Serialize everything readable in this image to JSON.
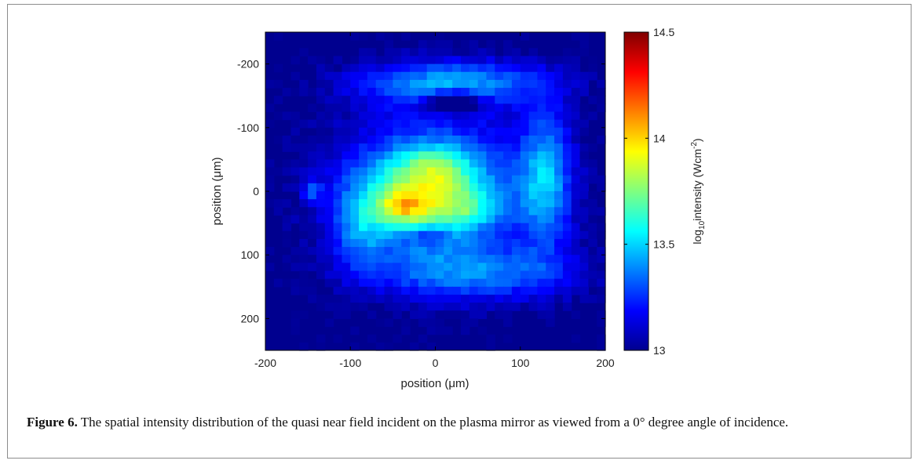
{
  "chart_data": {
    "type": "heatmap",
    "title": "",
    "xlabel": "position (μm)",
    "ylabel": "position (μm)",
    "xlim": [
      -200,
      200
    ],
    "ylim": [
      -250,
      250
    ],
    "y_axis_direction": "downward-increasing",
    "x_ticks": [
      "-200",
      "-100",
      "0",
      "100",
      "200"
    ],
    "y_ticks": [
      "-200",
      "-100",
      "0",
      "100",
      "200"
    ],
    "colorbar": {
      "label_base": "log",
      "label_sub": "10",
      "label_mid": "intensity (Wcm",
      "label_sup": "-2",
      "label_end": ")",
      "range": [
        13,
        14.5
      ],
      "ticks": [
        "13",
        "13.5",
        "14",
        "14.5"
      ],
      "colormap": "jet",
      "position": "right"
    },
    "features": [
      {
        "x": 0,
        "y": 0,
        "sx": 115,
        "sy": 120,
        "amp": 0.4
      },
      {
        "x": -15,
        "y": 5,
        "sx": 70,
        "sy": 65,
        "amp": 0.45
      },
      {
        "x": -40,
        "y": 25,
        "sx": 30,
        "sy": 25,
        "amp": 0.35
      },
      {
        "x": 0,
        "y": -40,
        "sx": 40,
        "sy": 35,
        "amp": 0.2
      },
      {
        "x": 40,
        "y": 30,
        "sx": 35,
        "sy": 25,
        "amp": 0.18
      },
      {
        "x": 20,
        "y": -170,
        "sx": 110,
        "sy": 35,
        "amp": 0.4
      },
      {
        "x": 130,
        "y": -20,
        "sx": 30,
        "sy": 110,
        "amp": 0.4
      },
      {
        "x": 50,
        "y": 130,
        "sx": 120,
        "sy": 40,
        "amp": 0.3
      },
      {
        "x": -90,
        "y": 60,
        "sx": 30,
        "sy": 60,
        "amp": 0.25
      },
      {
        "x": 20,
        "y": -140,
        "sx": 30,
        "sy": 15,
        "amp": -0.55
      },
      {
        "x": -10,
        "y": 70,
        "sx": 25,
        "sy": 15,
        "amp": -0.2
      },
      {
        "x": -145,
        "y": 0,
        "sx": 10,
        "sy": 15,
        "amp": 0.3
      }
    ]
  },
  "caption": {
    "label": "Figure 6.",
    "text": " The spatial intensity distribution of the quasi near field incident on the plasma mirror as viewed from a 0° degree angle of incidence."
  }
}
